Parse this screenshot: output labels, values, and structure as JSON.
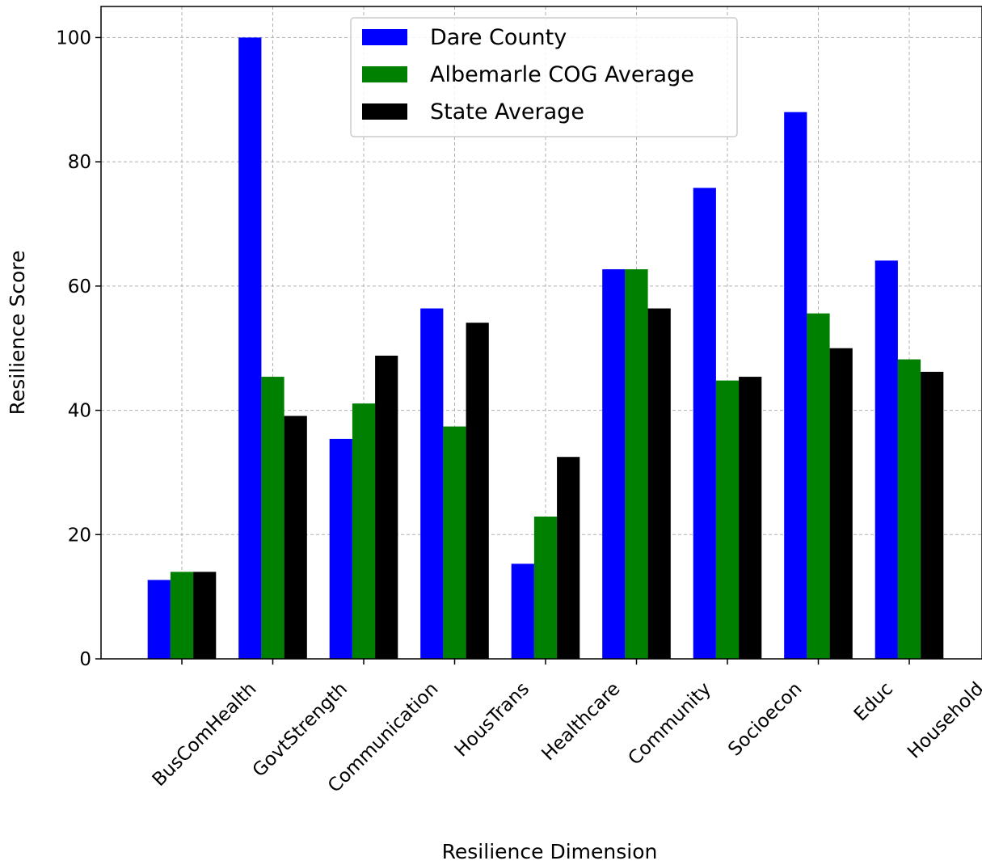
{
  "chart_data": {
    "type": "bar",
    "title": "",
    "xlabel": "Resilience Dimension",
    "ylabel": "Resilience Score",
    "categories": [
      "BusComHealth",
      "GovtStrength",
      "Communication",
      "HousTrans",
      "Healthcare",
      "Community",
      "Socioecon",
      "Educ",
      "Household"
    ],
    "series": [
      {
        "name": "Dare County",
        "color": "#0000ff",
        "values": [
          12.7,
          100,
          35.4,
          56.4,
          15.3,
          62.7,
          75.8,
          88.0,
          64.1
        ]
      },
      {
        "name": "Albemarle COG Average",
        "color": "#008000",
        "values": [
          14.0,
          45.4,
          41.1,
          37.4,
          22.9,
          62.7,
          44.8,
          55.6,
          48.2
        ]
      },
      {
        "name": "State Average",
        "color": "#000000",
        "values": [
          14.0,
          39.1,
          48.8,
          54.1,
          32.5,
          56.4,
          45.4,
          50.0,
          46.2
        ]
      }
    ],
    "ylim": [
      0,
      105
    ],
    "yticks": [
      0,
      20,
      40,
      60,
      80,
      100
    ],
    "grid": true,
    "legend_position": "top-center"
  }
}
